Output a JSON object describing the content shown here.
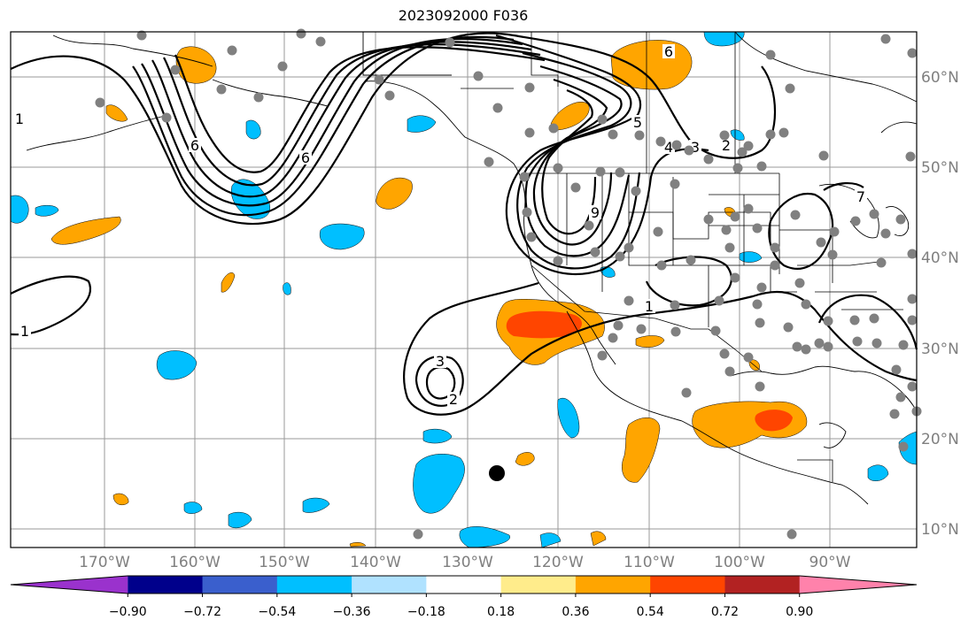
{
  "title": "2023092000 F036",
  "lon_labels": [
    "170°W",
    "160°W",
    "150°W",
    "140°W",
    "130°W",
    "120°W",
    "110°W",
    "100°W",
    "90°W"
  ],
  "lat_labels": [
    "60°N",
    "50°N",
    "40°N",
    "30°N",
    "20°N",
    "10°N"
  ],
  "colorbar": {
    "tick_labels": [
      "−0.90",
      "−0.72",
      "−0.54",
      "−0.36",
      "−0.18",
      "0.18",
      "0.36",
      "0.54",
      "0.72",
      "0.90"
    ],
    "colors": [
      "#9a32cd",
      "#00008b",
      "#3a5fcd",
      "#00bfff",
      "#b0e2ff",
      "#ffffff",
      "#ffec8b",
      "#ffa500",
      "#ff4500",
      "#b22222",
      "#ff82ab"
    ]
  },
  "contour_labels": [
    "1",
    "1",
    "1",
    "2",
    "2",
    "3",
    "3",
    "4",
    "5",
    "6",
    "6",
    "6",
    "9",
    "7"
  ],
  "colors": {
    "positive_fill": "#ffa500",
    "strong_positive_fill": "#ff4500",
    "negative_fill": "#00bfff",
    "station": "#808080"
  }
}
